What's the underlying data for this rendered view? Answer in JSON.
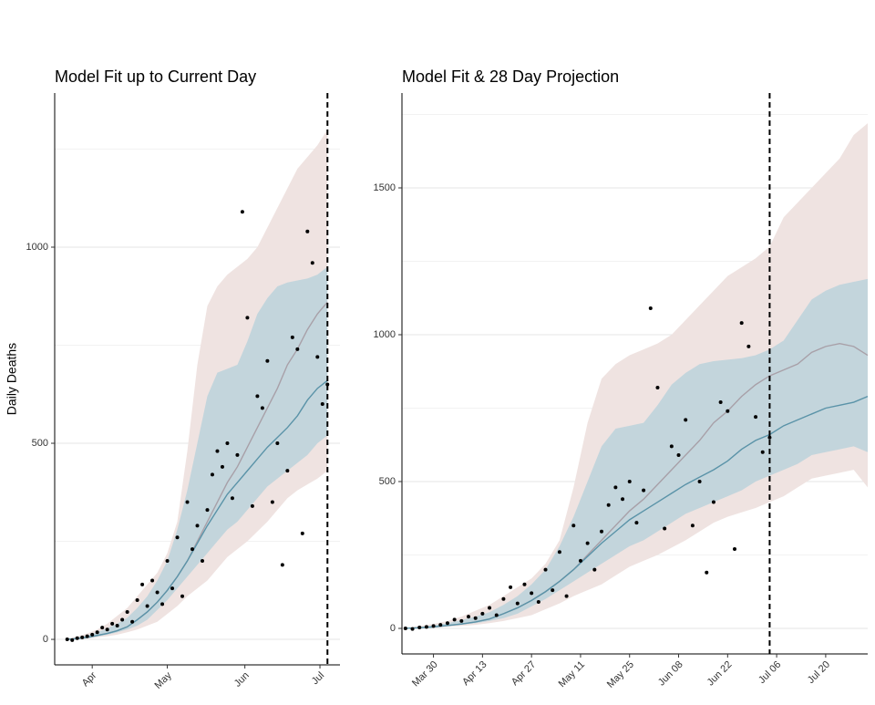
{
  "chart_data": [
    {
      "type": "ribbon-scatter",
      "title": "Model Fit up to Current Day",
      "ylabel": "Daily Deaths",
      "xlim": [
        -3,
        111
      ],
      "ylim": [
        -65,
        1393
      ],
      "xticks": [
        {
          "value": 12,
          "label": "Apr"
        },
        {
          "value": 42,
          "label": "May"
        },
        {
          "value": 73,
          "label": "Jun"
        },
        {
          "value": 103,
          "label": "Jul"
        }
      ],
      "yticks": [
        0,
        500,
        1000
      ],
      "yminor": [
        250,
        750,
        1250
      ],
      "grid": true,
      "vline": 106,
      "x": [
        2,
        6,
        10,
        14,
        18,
        22,
        26,
        30,
        34,
        38,
        42,
        46,
        50,
        54,
        58,
        62,
        66,
        70,
        74,
        78,
        82,
        86,
        90,
        94,
        98,
        102,
        106
      ],
      "ribbons": [
        {
          "color": "#efe3e1",
          "lower": [
            0,
            0,
            2,
            5,
            8,
            12,
            18,
            25,
            35,
            45,
            65,
            85,
            110,
            130,
            150,
            180,
            210,
            230,
            250,
            275,
            300,
            330,
            360,
            380,
            395,
            410,
            430
          ],
          "upper": [
            2,
            8,
            15,
            25,
            40,
            60,
            80,
            110,
            140,
            170,
            220,
            300,
            480,
            700,
            850,
            900,
            930,
            950,
            970,
            1000,
            1050,
            1100,
            1150,
            1200,
            1230,
            1260,
            1300
          ]
        },
        {
          "color": "#9fcad8",
          "lower": [
            0,
            1,
            3,
            7,
            12,
            18,
            25,
            35,
            50,
            75,
            100,
            130,
            160,
            190,
            220,
            250,
            280,
            300,
            330,
            360,
            390,
            410,
            430,
            450,
            470,
            500,
            520
          ],
          "upper": [
            1,
            5,
            10,
            18,
            28,
            40,
            55,
            80,
            110,
            150,
            200,
            280,
            380,
            500,
            620,
            680,
            690,
            700,
            760,
            830,
            870,
            900,
            910,
            915,
            920,
            930,
            950
          ]
        }
      ],
      "series": [
        {
          "color": "#a8a0a8",
          "values": [
            0,
            2,
            5,
            10,
            15,
            22,
            32,
            50,
            70,
            95,
            125,
            160,
            200,
            250,
            300,
            350,
            400,
            440,
            490,
            540,
            590,
            640,
            700,
            740,
            790,
            830,
            860
          ]
        },
        {
          "color": "#5a93a8",
          "values": [
            0,
            2,
            5,
            10,
            15,
            22,
            32,
            50,
            70,
            95,
            125,
            160,
            200,
            245,
            290,
            330,
            370,
            400,
            430,
            460,
            490,
            515,
            540,
            570,
            610,
            640,
            660
          ]
        }
      ],
      "points": {
        "color": "#000",
        "x": [
          2,
          4,
          6,
          8,
          10,
          12,
          14,
          16,
          18,
          20,
          22,
          24,
          26,
          28,
          30,
          32,
          34,
          36,
          38,
          40,
          42,
          44,
          46,
          48,
          50,
          52,
          54,
          56,
          58,
          60,
          62,
          64,
          66,
          68,
          70,
          72,
          74,
          76,
          78,
          80,
          82,
          84,
          86,
          88,
          90,
          92,
          94,
          96,
          98,
          100,
          102,
          104,
          106
        ],
        "values": [
          0,
          -2,
          3,
          5,
          8,
          12,
          18,
          30,
          25,
          40,
          35,
          50,
          70,
          45,
          100,
          140,
          85,
          150,
          120,
          90,
          200,
          130,
          260,
          110,
          350,
          230,
          290,
          200,
          330,
          420,
          480,
          440,
          500,
          360,
          470,
          1090,
          820,
          340,
          620,
          590,
          710,
          350,
          500,
          190,
          430,
          770,
          740,
          270,
          1040,
          960,
          720,
          600,
          650
        ]
      }
    },
    {
      "type": "ribbon-scatter",
      "title": "Model Fit & 28 Day Projection",
      "xlim": [
        1,
        134
      ],
      "ylim": [
        -87,
        1823
      ],
      "xticks": [
        {
          "value": 10,
          "label": "Mar 30"
        },
        {
          "value": 24,
          "label": "Apr 13"
        },
        {
          "value": 38,
          "label": "Apr 27"
        },
        {
          "value": 52,
          "label": "May 11"
        },
        {
          "value": 66,
          "label": "May 25"
        },
        {
          "value": 80,
          "label": "Jun 08"
        },
        {
          "value": 94,
          "label": "Jun 22"
        },
        {
          "value": 108,
          "label": "Jul 06"
        },
        {
          "value": 122,
          "label": "Jul 20"
        }
      ],
      "yticks": [
        0,
        500,
        1000,
        1500
      ],
      "yminor": [
        250,
        750,
        1250,
        1750
      ],
      "grid": true,
      "vline": 106,
      "x": [
        2,
        6,
        10,
        14,
        18,
        22,
        26,
        30,
        34,
        38,
        42,
        46,
        50,
        54,
        58,
        62,
        66,
        70,
        74,
        78,
        82,
        86,
        90,
        94,
        98,
        102,
        106,
        110,
        114,
        118,
        122,
        126,
        130,
        134
      ],
      "ribbons": [
        {
          "color": "#efe3e1",
          "lower": [
            0,
            0,
            2,
            5,
            8,
            12,
            18,
            25,
            35,
            45,
            65,
            85,
            110,
            130,
            150,
            180,
            210,
            230,
            250,
            275,
            300,
            330,
            360,
            380,
            395,
            410,
            430,
            450,
            480,
            510,
            520,
            530,
            540,
            480
          ],
          "upper": [
            2,
            8,
            15,
            25,
            40,
            60,
            80,
            110,
            140,
            170,
            220,
            300,
            480,
            700,
            850,
            900,
            930,
            950,
            970,
            1000,
            1050,
            1100,
            1150,
            1200,
            1230,
            1260,
            1300,
            1400,
            1450,
            1500,
            1550,
            1600,
            1680,
            1720
          ]
        },
        {
          "color": "#9fcad8",
          "lower": [
            0,
            1,
            3,
            7,
            12,
            18,
            25,
            35,
            50,
            75,
            100,
            130,
            160,
            190,
            220,
            250,
            280,
            300,
            330,
            360,
            390,
            410,
            430,
            450,
            470,
            500,
            520,
            540,
            560,
            590,
            600,
            610,
            620,
            600
          ],
          "upper": [
            1,
            5,
            10,
            18,
            28,
            40,
            55,
            80,
            110,
            150,
            200,
            280,
            380,
            500,
            620,
            680,
            690,
            700,
            760,
            830,
            870,
            900,
            910,
            915,
            920,
            930,
            950,
            980,
            1050,
            1120,
            1150,
            1170,
            1180,
            1190
          ]
        }
      ],
      "series": [
        {
          "color": "#a8a0a8",
          "values": [
            0,
            2,
            5,
            10,
            15,
            22,
            32,
            50,
            70,
            95,
            125,
            160,
            200,
            250,
            300,
            350,
            400,
            440,
            490,
            540,
            590,
            640,
            700,
            740,
            790,
            830,
            860,
            880,
            900,
            940,
            960,
            970,
            960,
            930
          ]
        },
        {
          "color": "#5a93a8",
          "values": [
            0,
            2,
            5,
            10,
            15,
            22,
            32,
            50,
            70,
            95,
            125,
            160,
            200,
            245,
            290,
            330,
            370,
            400,
            430,
            460,
            490,
            515,
            540,
            570,
            610,
            640,
            660,
            690,
            710,
            730,
            750,
            760,
            770,
            790
          ]
        }
      ],
      "points": {
        "color": "#000",
        "x": [
          2,
          4,
          6,
          8,
          10,
          12,
          14,
          16,
          18,
          20,
          22,
          24,
          26,
          28,
          30,
          32,
          34,
          36,
          38,
          40,
          42,
          44,
          46,
          48,
          50,
          52,
          54,
          56,
          58,
          60,
          62,
          64,
          66,
          68,
          70,
          72,
          74,
          76,
          78,
          80,
          82,
          84,
          86,
          88,
          90,
          92,
          94,
          96,
          98,
          100,
          102,
          104,
          106
        ],
        "values": [
          0,
          -2,
          3,
          5,
          8,
          12,
          18,
          30,
          25,
          40,
          35,
          50,
          70,
          45,
          100,
          140,
          85,
          150,
          120,
          90,
          200,
          130,
          260,
          110,
          350,
          230,
          290,
          200,
          330,
          420,
          480,
          440,
          500,
          360,
          470,
          1090,
          820,
          340,
          620,
          590,
          710,
          350,
          500,
          190,
          430,
          770,
          740,
          270,
          1040,
          960,
          720,
          600,
          650
        ]
      }
    }
  ]
}
